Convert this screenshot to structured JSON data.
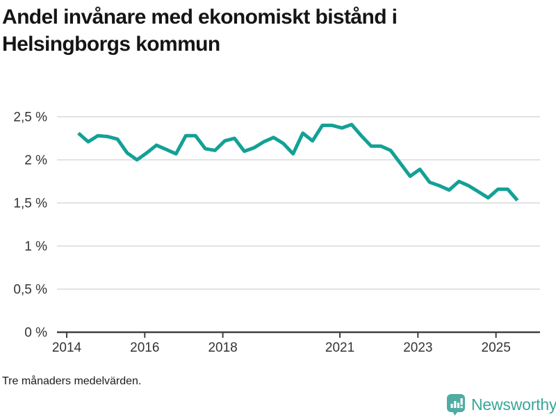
{
  "title_lines": [
    "Andel invånare med ekonomiskt bistånd i",
    "Helsingborgs kommun"
  ],
  "footer": {
    "note": "Tre månaders medelvärden."
  },
  "branding": {
    "name": "Newsworthy",
    "icon": "newsworthy-chart-bubble-icon",
    "text_color": "#3aa59b",
    "icon_color": "#4faca3"
  },
  "colors": {
    "line": "#13a195",
    "grid": "#d9d9d9",
    "axis": "#3f3f3f",
    "tick_label": "#333333",
    "title": "#151515"
  },
  "chart_data": {
    "type": "line",
    "title": "Andel invånare med ekonomiskt bistånd i Helsingborgs kommun",
    "subtitle_note": "Tre månaders medelvärden.",
    "series_name": "Andel invånare med ekonomiskt bistånd",
    "unit": "%",
    "grid": "horizontal",
    "legend": "none",
    "ylim": [
      0,
      2.5
    ],
    "xlim": [
      2013.75,
      2026.1
    ],
    "y_ticks": [
      {
        "v": 2.5,
        "label": "2,5 %"
      },
      {
        "v": 2.0,
        "label": "2 %"
      },
      {
        "v": 1.5,
        "label": "1,5 %"
      },
      {
        "v": 1.0,
        "label": "1 %"
      },
      {
        "v": 0.5,
        "label": "0,5 %"
      },
      {
        "v": 0.0,
        "label": "0 %"
      }
    ],
    "x_ticks": [
      {
        "v": 2014,
        "label": "2014"
      },
      {
        "v": 2016,
        "label": "2016"
      },
      {
        "v": 2018,
        "label": "2018"
      },
      {
        "v": 2021,
        "label": "2021"
      },
      {
        "v": 2023,
        "label": "2023"
      },
      {
        "v": 2025,
        "label": "2025"
      }
    ],
    "x": [
      2014.3,
      2014.55,
      2014.8,
      2015.05,
      2015.3,
      2015.55,
      2015.8,
      2016.05,
      2016.3,
      2016.55,
      2016.8,
      2017.05,
      2017.3,
      2017.55,
      2017.8,
      2018.05,
      2018.3,
      2018.55,
      2018.8,
      2019.05,
      2019.3,
      2019.55,
      2019.8,
      2020.05,
      2020.3,
      2020.55,
      2020.8,
      2021.05,
      2021.3,
      2021.55,
      2021.8,
      2022.05,
      2022.3,
      2022.55,
      2022.8,
      2023.05,
      2023.3,
      2023.55,
      2023.8,
      2024.05,
      2024.3,
      2024.55,
      2024.8,
      2025.05,
      2025.3,
      2025.55
    ],
    "values": [
      2.31,
      2.21,
      2.28,
      2.27,
      2.24,
      2.08,
      2.0,
      2.08,
      2.17,
      2.12,
      2.07,
      2.28,
      2.28,
      2.13,
      2.11,
      2.22,
      2.25,
      2.1,
      2.14,
      2.21,
      2.26,
      2.19,
      2.07,
      2.31,
      2.22,
      2.4,
      2.4,
      2.37,
      2.41,
      2.28,
      2.16,
      2.16,
      2.11,
      1.96,
      1.81,
      1.89,
      1.74,
      1.7,
      1.65,
      1.75,
      1.7,
      1.63,
      1.56,
      1.66,
      1.66,
      1.53
    ]
  }
}
